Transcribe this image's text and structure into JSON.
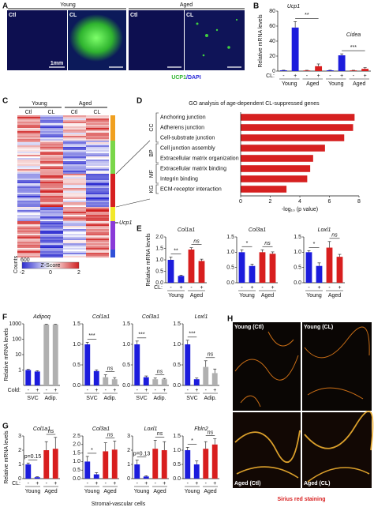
{
  "chart_data": [
    {
      "type": "bar",
      "genes": [
        "Ucp1",
        "Cidea"
      ],
      "ylabel": "Relative mRNA levels",
      "categories": [
        "-",
        "+",
        "-",
        "+",
        "-",
        "+",
        "-",
        "+"
      ],
      "groups": [
        "Young",
        "Aged",
        "Young",
        "Aged"
      ],
      "group_label": "CL:",
      "values": [
        1,
        58,
        0.8,
        6.5,
        1,
        21,
        0.9,
        3
      ],
      "errors": [
        0.2,
        8,
        0.3,
        3,
        0.2,
        2,
        0.2,
        1.5
      ],
      "colors": [
        "#1c1cdc",
        "#1c1cdc",
        "#d81e1e",
        "#d81e1e",
        "#1c1cdc",
        "#1c1cdc",
        "#d81e1e",
        "#d81e1e"
      ],
      "ylim": [
        0,
        80
      ],
      "yticks": [
        0,
        20,
        40,
        60,
        80
      ],
      "annotations": [
        "**",
        "***"
      ]
    },
    {
      "type": "hbar",
      "title": "GO analysis of age-dependent CL-suppressed genes",
      "categories": [
        "Anchoring junction",
        "Adherens junction",
        "Cell-substrate junction",
        "Cell junction assembly",
        "Extracellular matrix organization",
        "Extracellular matrix binding",
        "Integrin binding",
        "ECM-receptor interaction"
      ],
      "values": [
        7.7,
        7.6,
        7.0,
        5.7,
        4.9,
        4.7,
        4.5,
        3.1
      ],
      "color": "#d62020",
      "groups": [
        "CC",
        "BP",
        "MF",
        "KG"
      ],
      "xlim": [
        0,
        8
      ],
      "xticks": [
        0,
        2,
        4,
        6,
        8
      ],
      "xlabel": "-log₁₀ (p value)"
    },
    {
      "type": "bar",
      "title": "Col1a1",
      "ylabel": "Relative mRNA levels",
      "categories": [
        "-",
        "+",
        "-",
        "+"
      ],
      "groups": [
        "Young",
        "Aged"
      ],
      "group_label": "CL:",
      "values": [
        1.0,
        0.3,
        1.45,
        0.95
      ],
      "errors": [
        0.12,
        0.03,
        0.08,
        0.08
      ],
      "colors": [
        "#1c1cdc",
        "#1c1cdc",
        "#d81e1e",
        "#d81e1e"
      ],
      "ylim": [
        0,
        2
      ],
      "yticks": [
        {
          "value": 0,
          "label": "0.0"
        },
        {
          "value": 0.5,
          "label": "0.5"
        },
        {
          "value": 1,
          "label": "1.0"
        },
        {
          "value": 1.5,
          "label": "1.5"
        },
        {
          "value": 2,
          "label": "2.0"
        }
      ],
      "annotations": [
        "**",
        "ns"
      ]
    },
    {
      "type": "bar",
      "title": "Col3a1",
      "categories": [
        "-",
        "+",
        "-",
        "+"
      ],
      "groups": [
        "Young",
        "Aged"
      ],
      "values": [
        1.0,
        0.55,
        1.0,
        0.95
      ],
      "errors": [
        0.08,
        0.06,
        0.08,
        0.06
      ],
      "colors": [
        "#1c1cdc",
        "#1c1cdc",
        "#d81e1e",
        "#d81e1e"
      ],
      "ylim": [
        0,
        1.5
      ],
      "yticks": [
        {
          "value": 0,
          "label": "0.0"
        },
        {
          "value": 0.5,
          "label": "0.5"
        },
        {
          "value": 1,
          "label": "1.0"
        },
        {
          "value": 1.5,
          "label": "1.5"
        }
      ],
      "annotations": [
        "*",
        "ns"
      ]
    },
    {
      "type": "bar",
      "title": "Loxl1",
      "categories": [
        "-",
        "+",
        "-",
        "+"
      ],
      "groups": [
        "Young",
        "Aged"
      ],
      "values": [
        1.0,
        0.55,
        1.15,
        0.85
      ],
      "errors": [
        0.05,
        0.1,
        0.2,
        0.08
      ],
      "colors": [
        "#1c1cdc",
        "#1c1cdc",
        "#d81e1e",
        "#d81e1e"
      ],
      "ylim": [
        0,
        1.5
      ],
      "yticks": [
        {
          "value": 0,
          "label": "0.0"
        },
        {
          "value": 0.5,
          "label": "0.5"
        },
        {
          "value": 1,
          "label": "1.0"
        },
        {
          "value": 1.5,
          "label": "1.5"
        }
      ],
      "annotations": [
        "*",
        "ns"
      ]
    },
    {
      "type": "bar",
      "title": "Adipoq",
      "ylabel": "Relative mRNA levels",
      "categories": [
        "-",
        "+",
        "-",
        "+"
      ],
      "groups": [
        "SVC",
        "Adip."
      ],
      "group_label": "Cold:",
      "values": [
        1,
        0.8,
        900,
        900
      ],
      "errors": [
        0.1,
        0.1,
        50,
        40
      ],
      "colors": [
        "#1c1cdc",
        "#1c1cdc",
        "#b0b0b0",
        "#b0b0b0"
      ],
      "log_scale": true,
      "ylim": [
        0.1,
        1000
      ],
      "yticks": [
        1,
        10,
        100,
        1000
      ]
    },
    {
      "type": "bar",
      "title": "Col1a1",
      "categories": [
        "-",
        "+",
        "-",
        "+"
      ],
      "groups": [
        "SVC",
        "Adip."
      ],
      "values": [
        1.0,
        0.35,
        0.2,
        0.15
      ],
      "errors": [
        0.05,
        0.03,
        0.06,
        0.04
      ],
      "colors": [
        "#1c1cdc",
        "#1c1cdc",
        "#b0b0b0",
        "#b0b0b0"
      ],
      "ylim": [
        0,
        1.5
      ],
      "yticks": [
        {
          "value": 0,
          "label": "0.0"
        },
        {
          "value": 0.5,
          "label": "0.5"
        },
        {
          "value": 1,
          "label": "1.0"
        },
        {
          "value": 1.5,
          "label": "1.5"
        }
      ],
      "annotations": [
        "***",
        "ns"
      ]
    },
    {
      "type": "bar",
      "title": "Col3a1",
      "categories": [
        "-",
        "+",
        "-",
        "+"
      ],
      "groups": [
        "SVC",
        "Adip."
      ],
      "values": [
        1.0,
        0.2,
        0.15,
        0.15
      ],
      "errors": [
        0.08,
        0.03,
        0.03,
        0.02
      ],
      "colors": [
        "#1c1cdc",
        "#1c1cdc",
        "#b0b0b0",
        "#b0b0b0"
      ],
      "ylim": [
        0,
        1.5
      ],
      "yticks": [
        {
          "value": 0,
          "label": "0.0"
        },
        {
          "value": 0.5,
          "label": "0.5"
        },
        {
          "value": 1,
          "label": "1.0"
        },
        {
          "value": 1.5,
          "label": "1.5"
        }
      ],
      "annotations": [
        "***",
        "ns"
      ]
    },
    {
      "type": "bar",
      "title": "Loxl1",
      "categories": [
        "-",
        "+",
        "-",
        "+"
      ],
      "groups": [
        "SVC",
        "Adip."
      ],
      "values": [
        1.0,
        0.15,
        0.45,
        0.3
      ],
      "errors": [
        0.1,
        0.03,
        0.15,
        0.1
      ],
      "colors": [
        "#1c1cdc",
        "#1c1cdc",
        "#b0b0b0",
        "#b0b0b0"
      ],
      "ylim": [
        0,
        1.5
      ],
      "yticks": [
        {
          "value": 0,
          "label": "0.0"
        },
        {
          "value": 0.5,
          "label": "0.5"
        },
        {
          "value": 1,
          "label": "1.0"
        },
        {
          "value": 1.5,
          "label": "1.5"
        }
      ],
      "annotations": [
        "***",
        "ns"
      ]
    },
    {
      "type": "bar",
      "title": "Col1a1",
      "ylabel": "Relative mRNA levels",
      "categories": [
        "-",
        "+",
        "-",
        "+"
      ],
      "groups": [
        "Young",
        "Aged"
      ],
      "group_label": "CL:",
      "values": [
        1.0,
        0.1,
        2.0,
        2.1
      ],
      "errors": [
        0.1,
        0.03,
        0.6,
        0.8
      ],
      "colors": [
        "#1c1cdc",
        "#1c1cdc",
        "#d81e1e",
        "#d81e1e"
      ],
      "ylim": [
        0,
        3
      ],
      "yticks": [
        0,
        1,
        2,
        3
      ],
      "annotations": [
        "p=0.15",
        "ns"
      ]
    },
    {
      "type": "bar",
      "title": "Col3a1",
      "categories": [
        "-",
        "+",
        "-",
        "+"
      ],
      "groups": [
        "Young",
        "Aged"
      ],
      "values": [
        1.0,
        0.25,
        1.6,
        1.7
      ],
      "errors": [
        0.3,
        0.1,
        0.5,
        0.5
      ],
      "colors": [
        "#1c1cdc",
        "#1c1cdc",
        "#d81e1e",
        "#d81e1e"
      ],
      "ylim": [
        0,
        2.5
      ],
      "yticks": [
        {
          "value": 0,
          "label": "0.0"
        },
        {
          "value": 0.5,
          "label": "0.5"
        },
        {
          "value": 1,
          "label": "1.0"
        },
        {
          "value": 1.5,
          "label": "1.5"
        },
        {
          "value": 2,
          "label": "2.0"
        },
        {
          "value": 2.5,
          "label": "2.5"
        }
      ],
      "annotations": [
        "*",
        "ns"
      ]
    },
    {
      "type": "bar",
      "title": "Loxl1",
      "categories": [
        "-",
        "+",
        "-",
        "+"
      ],
      "groups": [
        "Young",
        "Aged"
      ],
      "values": [
        1.0,
        0.15,
        2.1,
        2.0
      ],
      "errors": [
        0.3,
        0.05,
        0.6,
        0.6
      ],
      "colors": [
        "#1c1cdc",
        "#1c1cdc",
        "#d81e1e",
        "#d81e1e"
      ],
      "ylim": [
        0,
        3
      ],
      "yticks": [
        0,
        1,
        2,
        3
      ],
      "annotations": [
        "p=0.13",
        "ns"
      ]
    },
    {
      "type": "bar",
      "title": "Fbln2",
      "categories": [
        "-",
        "+",
        "-",
        "+"
      ],
      "groups": [
        "Young",
        "Aged"
      ],
      "values": [
        1.0,
        0.5,
        1.05,
        1.2
      ],
      "errors": [
        0.1,
        0.12,
        0.25,
        0.2
      ],
      "colors": [
        "#1c1cdc",
        "#1c1cdc",
        "#d81e1e",
        "#d81e1e"
      ],
      "ylim": [
        0,
        1.5
      ],
      "yticks": [
        {
          "value": 0,
          "label": "0.0"
        },
        {
          "value": 0.5,
          "label": "0.5"
        },
        {
          "value": 1,
          "label": "1.0"
        },
        {
          "value": 1.5,
          "label": "1.5"
        }
      ],
      "annotations": [
        "*",
        "ns"
      ]
    }
  ],
  "figure": {
    "panels": [
      "A",
      "B",
      "C",
      "D",
      "E",
      "F",
      "G",
      "H"
    ],
    "a": {
      "groups": [
        "Young",
        "Aged"
      ],
      "images": [
        "Ctl",
        "CL",
        "Ctl",
        "CL"
      ],
      "scale": "1mm",
      "stain": [
        "UCP1",
        "/DAPI"
      ]
    },
    "c": {
      "groups": [
        "Young",
        "Aged"
      ],
      "columns": [
        "Ctl",
        "CL",
        "Ctl",
        "CL"
      ],
      "gene": "Ucp1",
      "key_title": "Counts",
      "key_count": 600,
      "key_label": "Z-Score",
      "key_ticks": [
        -2,
        0,
        2
      ]
    },
    "g": {
      "xlabel": "Stromal-vascular cells"
    },
    "h": {
      "images": [
        "Young (Ctl)",
        "Young (CL)",
        "Aged (Ctl)",
        "Aged (CL)"
      ],
      "stain": "Sirius red staining"
    }
  }
}
